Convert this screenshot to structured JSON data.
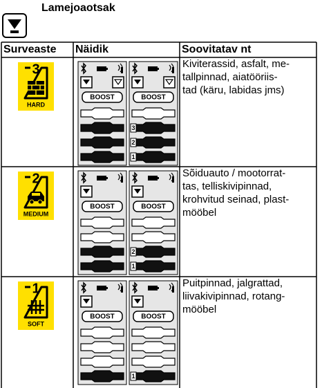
{
  "header": {
    "title": "Lamejoaotsak"
  },
  "table": {
    "columns": [
      "Surveaste",
      "Näidik",
      "Soovitatav nt"
    ],
    "rows": [
      {
        "badge": {
          "number": "3",
          "label": "HARD",
          "icon": "brick"
        },
        "displays": [
          {
            "boost": "BOOST",
            "filters": 2,
            "slots": [
              {
                "filled": false
              },
              {
                "filled": true
              },
              {
                "filled": true
              },
              {
                "filled": true
              }
            ]
          },
          {
            "boost": "BOOST",
            "filters": 2,
            "slots": [
              {
                "filled": false
              },
              {
                "filled": true,
                "label": "3"
              },
              {
                "filled": true,
                "label": "2"
              },
              {
                "filled": true,
                "label": "1"
              }
            ]
          }
        ],
        "description": [
          "Kiviterassid, asfalt, me-",
          "tallpinnad, aiatööriis-",
          "tad (käru, labidas jms)"
        ]
      },
      {
        "badge": {
          "number": "2",
          "label": "MEDIUM",
          "icon": "car"
        },
        "displays": [
          {
            "boost": "BOOST",
            "filters": 1,
            "slots": [
              {
                "filled": false
              },
              {
                "filled": false
              },
              {
                "filled": true
              },
              {
                "filled": true
              }
            ]
          },
          {
            "boost": "BOOST",
            "filters": 1,
            "slots": [
              {
                "filled": false
              },
              {
                "filled": false
              },
              {
                "filled": true,
                "label": "2"
              },
              {
                "filled": true,
                "label": "1"
              }
            ]
          }
        ],
        "description": [
          "Sõiduauto / mootorrat-",
          "tas, telliskivipinnad,",
          "krohvitud seinad, plast-",
          "mööbel"
        ]
      },
      {
        "badge": {
          "number": "1",
          "label": "SOFT",
          "icon": "grid"
        },
        "displays": [
          {
            "boost": "BOOST",
            "filters": 1,
            "slots": [
              {
                "filled": false
              },
              {
                "filled": false
              },
              {
                "filled": false
              },
              {
                "filled": true
              }
            ]
          },
          {
            "boost": "BOOST",
            "filters": 1,
            "slots": [
              {
                "filled": false
              },
              {
                "filled": false
              },
              {
                "filled": false
              },
              {
                "filled": true,
                "label": "1"
              }
            ]
          }
        ],
        "description": [
          "Puitpinnad, jalgrattad,",
          "liivakivipinnad, rotang-",
          "mööbel"
        ]
      }
    ]
  }
}
